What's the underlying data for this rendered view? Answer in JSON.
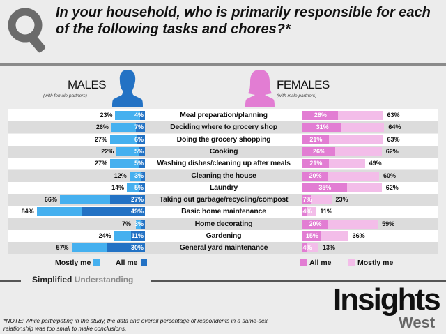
{
  "title": "In your household, who is primarily responsible for each of the following tasks and chores?*",
  "males": {
    "label": "MALES",
    "sub": "(with female partners)"
  },
  "females": {
    "label": "FEMALES",
    "sub": "(with male partners)"
  },
  "colors": {
    "male_mostly": "#45b0ef",
    "male_all": "#2372c4",
    "female_all": "#e27dd3",
    "female_mostly": "#f3bde9"
  },
  "chart_data": {
    "type": "bar",
    "orientation": "horizontal-diverging",
    "categories": [
      "Meal preparation/planning",
      "Deciding where to grocery shop",
      "Doing the grocery shopping",
      "Cooking",
      "Washing dishes/cleaning up after meals",
      "Cleaning the house",
      "Laundry",
      "Taking out garbage/recycling/compost",
      "Basic home maintenance",
      "Home decorating",
      "Gardening",
      "General yard maintenance"
    ],
    "series": [
      {
        "name": "Males – Mostly me",
        "values": [
          23,
          26,
          27,
          22,
          27,
          12,
          14,
          66,
          84,
          7,
          24,
          57
        ]
      },
      {
        "name": "Males – All me",
        "values": [
          4,
          7,
          6,
          5,
          5,
          3,
          5,
          27,
          49,
          3,
          11,
          30
        ]
      },
      {
        "name": "Females – All me",
        "values": [
          28,
          31,
          21,
          26,
          21,
          20,
          35,
          7,
          4,
          20,
          15,
          4
        ]
      },
      {
        "name": "Females – Mostly me",
        "values": [
          63,
          64,
          63,
          62,
          49,
          60,
          62,
          23,
          11,
          59,
          36,
          13
        ]
      }
    ]
  },
  "legend": {
    "male_mostly": "Mostly me",
    "male_all": "All me",
    "female_all": "All me",
    "female_mostly": "Mostly me"
  },
  "brand": {
    "a": "Simplified",
    "b": "Understanding"
  },
  "logo": {
    "name": "Insights",
    "sub": "West"
  },
  "note": "*NOTE: While participating in the study, the data and overall percentage of respondents in a same-sex relationship was too small to make conclusions."
}
